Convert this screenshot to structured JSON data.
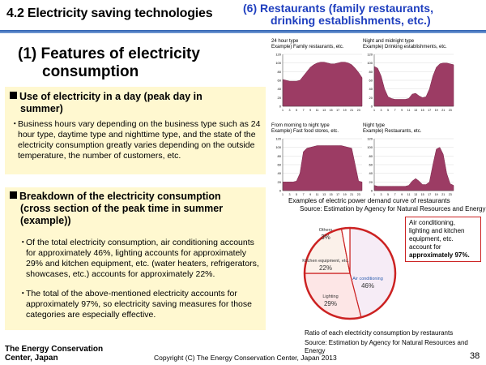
{
  "header": {
    "title": "4.2 Electricity saving technologies",
    "subtitle_line1": "(6) Restaurants (family restaurants,",
    "subtitle_line2": "drinking establishments, etc.)"
  },
  "heading": {
    "line1": "(1) Features of electricity",
    "line2": "consumption"
  },
  "section1": {
    "heading_line1": "Use of electricity in a day (peak day in",
    "heading_line2": "summer)",
    "bullet": "・",
    "text": "Business hours vary depending on the business type such as 24 hour type, daytime type and nighttime type, and the state of the electricity consumption greatly varies depending on the outside temperature, the number of customers, etc."
  },
  "section2": {
    "heading_line1": "Breakdown of the electricity consumption",
    "heading_line2": "(cross section of the peak time in summer",
    "heading_line3": "(example))",
    "bullet1_mark": "・",
    "bullet1": "Of the total electricity consumption, air conditioning accounts for approximately 46%, lighting accounts for approximately 29% and kitchen equipment, etc. (water heaters, refrigerators, showcases, etc.) accounts for approximately 22%.",
    "bullet2_mark": "・",
    "bullet2": "The total of the above-mentioned electricity accounts for approximately 97%, so electricity saving measures for those categories are especially effective."
  },
  "demand_charts_caption": "Examples of electric power demand curve of restaurants",
  "demand_charts_source": "Source: Estimation by Agency for Natural Resources and Energy",
  "pie_caption": "Ratio of each electricity consumption by restaurants",
  "pie_source": "Source: Estimation by Agency for Natural Resources and Energy",
  "callout": {
    "text": "Air conditioning, lighting and kitchen equipment, etc. account for",
    "bold": "approximately 97%."
  },
  "footer": {
    "org_line1": "The Energy Conservation",
    "org_line2": "Center, Japan",
    "copyright": "Copyright (C) The Energy Conservation Center, Japan 2013",
    "page": "38"
  },
  "colors": {
    "area_fill": "#9c3c64",
    "header_blue": "#1f3fbf",
    "box_bg": "#fff8d0",
    "pie_border": "#cc2222"
  },
  "chart_data": [
    {
      "type": "area",
      "title_line1": "24 hour type",
      "title_line2": "Example) Family restaurants, etc.",
      "x": [
        1,
        2,
        3,
        4,
        5,
        6,
        7,
        8,
        9,
        10,
        11,
        12,
        13,
        14,
        15,
        16,
        17,
        18,
        19,
        20,
        21,
        22,
        23,
        24
      ],
      "x_tick_labels": [
        "1",
        "3",
        "5",
        "7",
        "9",
        "11",
        "13",
        "15",
        "17",
        "19",
        "21",
        "23"
      ],
      "y_tick_labels": [
        "0",
        "20",
        "40",
        "60",
        "80",
        "100",
        "120"
      ],
      "ylim": [
        0,
        120
      ],
      "values": [
        62,
        60,
        58,
        58,
        58,
        60,
        70,
        80,
        90,
        96,
        100,
        102,
        102,
        100,
        98,
        98,
        100,
        102,
        102,
        100,
        96,
        88,
        78,
        66
      ]
    },
    {
      "type": "area",
      "title_line1": "Night and midnight type",
      "title_line2": "Example) Drinking establishments, etc.",
      "x": [
        1,
        2,
        3,
        4,
        5,
        6,
        7,
        8,
        9,
        10,
        11,
        12,
        13,
        14,
        15,
        16,
        17,
        18,
        19,
        20,
        21,
        22,
        23,
        24
      ],
      "x_tick_labels": [
        "1",
        "3",
        "5",
        "7",
        "9",
        "11",
        "13",
        "15",
        "17",
        "19",
        "21",
        "23"
      ],
      "y_tick_labels": [
        "0",
        "20",
        "40",
        "60",
        "80",
        "100",
        "120"
      ],
      "ylim": [
        0,
        120
      ],
      "values": [
        92,
        88,
        70,
        40,
        22,
        18,
        16,
        16,
        16,
        16,
        18,
        28,
        30,
        24,
        20,
        22,
        40,
        70,
        90,
        98,
        100,
        100,
        98,
        96
      ]
    },
    {
      "type": "area",
      "title_line1": "From morning to night type",
      "title_line2": "Example) Fast food stores, etc.",
      "x": [
        1,
        2,
        3,
        4,
        5,
        6,
        7,
        8,
        9,
        10,
        11,
        12,
        13,
        14,
        15,
        16,
        17,
        18,
        19,
        20,
        21,
        22,
        23,
        24
      ],
      "x_tick_labels": [
        "1",
        "3",
        "5",
        "7",
        "9",
        "11",
        "13",
        "15",
        "17",
        "19",
        "21",
        "23"
      ],
      "y_tick_labels": [
        "0",
        "20",
        "40",
        "60",
        "80",
        "100",
        "120"
      ],
      "ylim": [
        0,
        120
      ],
      "values": [
        20,
        20,
        20,
        20,
        22,
        40,
        90,
        98,
        100,
        102,
        104,
        104,
        104,
        104,
        104,
        104,
        104,
        104,
        102,
        100,
        98,
        60,
        22,
        20
      ]
    },
    {
      "type": "area",
      "title_line1": "Night type",
      "title_line2": "Example) Restaurants, etc.",
      "x": [
        1,
        2,
        3,
        4,
        5,
        6,
        7,
        8,
        9,
        10,
        11,
        12,
        13,
        14,
        15,
        16,
        17,
        18,
        19,
        20,
        21,
        22,
        23,
        24
      ],
      "x_tick_labels": [
        "1",
        "3",
        "5",
        "7",
        "9",
        "11",
        "13",
        "15",
        "17",
        "19",
        "21",
        "23"
      ],
      "y_tick_labels": [
        "0",
        "20",
        "40",
        "60",
        "80",
        "100",
        "120"
      ],
      "ylim": [
        0,
        120
      ],
      "values": [
        12,
        10,
        10,
        10,
        10,
        10,
        10,
        10,
        10,
        10,
        12,
        22,
        28,
        22,
        14,
        14,
        20,
        60,
        96,
        100,
        84,
        40,
        16,
        12
      ]
    },
    {
      "type": "pie",
      "labels": [
        "Air conditioning",
        "Lighting",
        "Kitchen equipment, etc.",
        "Others"
      ],
      "values": [
        46,
        29,
        22,
        3
      ],
      "value_labels": [
        "46%",
        "29%",
        "22%",
        "3%"
      ],
      "colors": [
        "#f6ecf6",
        "#fde6e6",
        "#fbf1ea",
        "#ffffff"
      ]
    }
  ]
}
